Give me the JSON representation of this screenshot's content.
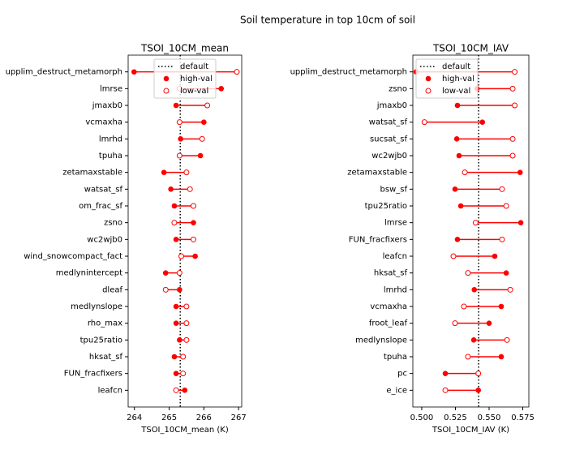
{
  "title": "Soil temperature in top 10cm of soil",
  "chart_data": [
    {
      "type": "dumbbell",
      "title": "TSOI_10CM_mean",
      "xlabel": "TSOI_10CM_mean (K)",
      "categories": [
        "upplim_destruct_metamorph",
        "lmrse",
        "jmaxb0",
        "vcmaxha",
        "lmrhd",
        "tpuha",
        "zetamaxstable",
        "watsat_sf",
        "om_frac_sf",
        "zsno",
        "wc2wjb0",
        "wind_snowcompact_fact",
        "medlynintercept",
        "dleaf",
        "medlynslope",
        "rho_max",
        "tpu25ratio",
        "hksat_sf",
        "FUN_fracfixers",
        "leafcn"
      ],
      "series": [
        {
          "name": "high-val",
          "color": "#ff0000",
          "values": [
            263.99,
            266.5,
            265.2,
            266.0,
            265.33,
            265.9,
            264.85,
            265.05,
            265.15,
            265.7,
            265.2,
            265.75,
            264.9,
            265.3,
            265.2,
            265.2,
            265.3,
            265.15,
            265.2,
            265.45
          ]
        },
        {
          "name": "low-val",
          "color": "#ff0000",
          "values": [
            266.95,
            265.3,
            266.1,
            265.3,
            265.95,
            265.3,
            265.5,
            265.6,
            265.7,
            265.15,
            265.7,
            265.35,
            265.3,
            264.9,
            265.5,
            265.5,
            265.5,
            265.4,
            265.4,
            265.2
          ]
        }
      ],
      "reference_line": {
        "name": "default",
        "value": 265.32,
        "color": "#000000"
      },
      "xlim": [
        263.82,
        267.09
      ],
      "xticks": [
        264,
        265,
        266,
        267
      ],
      "legend": "upper center"
    },
    {
      "type": "dumbbell",
      "title": "TSOI_10CM_IAV",
      "xlabel": "TSOI_10CM_IAV (K)",
      "categories": [
        "upplim_destruct_metamorph",
        "zsno",
        "jmaxb0",
        "watsat_sf",
        "sucsat_sf",
        "wc2wjb0",
        "zetamaxstable",
        "bsw_sf",
        "tpu25ratio",
        "lmrse",
        "FUN_fracfixers",
        "leafcn",
        "hksat_sf",
        "lmrhd",
        "vcmaxha",
        "froot_leaf",
        "medlynslope",
        "tpuha",
        "pc",
        "e_ice"
      ],
      "series": [
        {
          "name": "high-val",
          "color": "#ff0000",
          "values": [
            0.4958,
            0.541,
            0.5265,
            0.545,
            0.526,
            0.5277,
            0.573,
            0.5247,
            0.529,
            0.5735,
            0.5265,
            0.5542,
            0.5627,
            0.539,
            0.559,
            0.55,
            0.5386,
            0.559,
            0.5175,
            0.542
          ]
        },
        {
          "name": "low-val",
          "color": "#ff0000",
          "values": [
            0.569,
            0.5675,
            0.569,
            0.502,
            0.5675,
            0.5675,
            0.532,
            0.5596,
            0.5627,
            0.54,
            0.5596,
            0.5235,
            0.5343,
            0.5657,
            0.5313,
            0.5247,
            0.5633,
            0.5343,
            0.542,
            0.5175
          ]
        }
      ],
      "reference_line": {
        "name": "default",
        "value": 0.5422,
        "color": "#000000"
      },
      "xlim": [
        0.4934,
        0.5795
      ],
      "xticks": [
        {
          "value": 0.5,
          "label": "0.500"
        },
        {
          "value": 0.525,
          "label": "0.525"
        },
        {
          "value": 0.55,
          "label": "0.550"
        },
        {
          "value": 0.575,
          "label": "0.575"
        }
      ],
      "legend": "upper left"
    }
  ]
}
